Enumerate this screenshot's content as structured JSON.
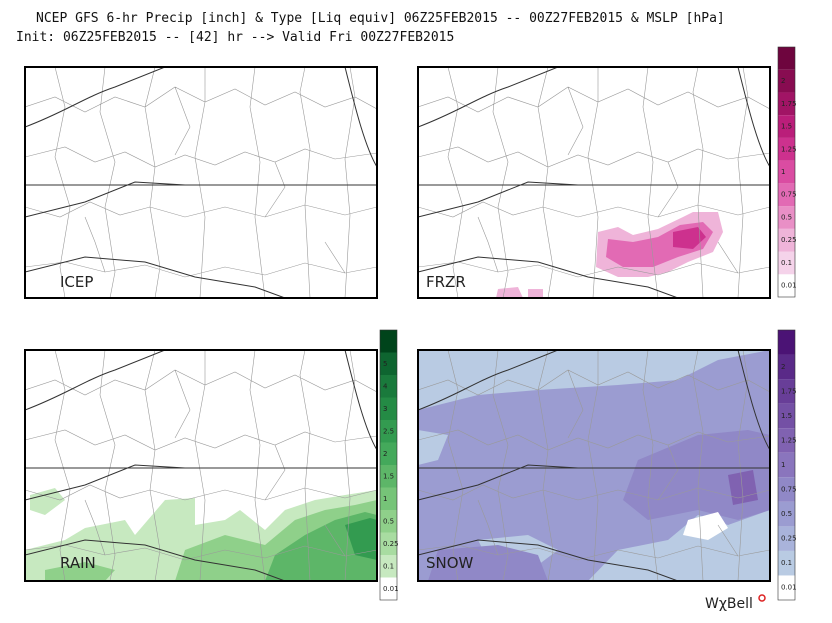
{
  "header": {
    "line1": "NCEP GFS 6-hr Precip [inch] & Type [Liq equiv] 06Z25FEB2015 -- 00Z27FEB2015 & MSLP [hPa]",
    "line2": "Init: 06Z25FEB2015 -- [42] hr --> Valid Fri 00Z27FEB2015"
  },
  "panels": [
    {
      "label": "ICEP"
    },
    {
      "label": "FRZR"
    },
    {
      "label": "RAIN"
    },
    {
      "label": "SNOW"
    }
  ],
  "colorbars": [
    {
      "name": "frzr",
      "ticks": [
        "0.01",
        "0.1",
        "0.25",
        "0.5",
        "0.75",
        "1",
        "1.25",
        "1.5",
        "1.75",
        "2"
      ],
      "colors": [
        "#ffffff",
        "#f5d3ea",
        "#efb4d9",
        "#e98fc6",
        "#e26ab4",
        "#da4ca2",
        "#cd318e",
        "#ba1e7a",
        "#a11465",
        "#880c51",
        "#6e053e"
      ]
    },
    {
      "name": "rain",
      "ticks": [
        "0.01",
        "0.1",
        "0.25",
        "0.5",
        "1",
        "1.5",
        "2",
        "2.5",
        "3",
        "4",
        "5"
      ],
      "colors": [
        "#ffffff",
        "#c7e9c0",
        "#a8dca1",
        "#8fd08a",
        "#76c478",
        "#5db668",
        "#44a95b",
        "#339b50",
        "#248b45",
        "#1a7a3c",
        "#0e6530",
        "#00441b"
      ]
    },
    {
      "name": "snow",
      "ticks": [
        "0.01",
        "0.1",
        "0.25",
        "0.5",
        "0.75",
        "1",
        "1.25",
        "1.5",
        "1.75",
        "2"
      ],
      "colors": [
        "#ffffff",
        "#b9cbe3",
        "#a9b3db",
        "#9b9cd1",
        "#9088c7",
        "#8a75bd",
        "#8062b1",
        "#7450a5",
        "#683e98",
        "#5a2a88",
        "#4b1375"
      ]
    }
  ],
  "logo": "WχBell"
}
